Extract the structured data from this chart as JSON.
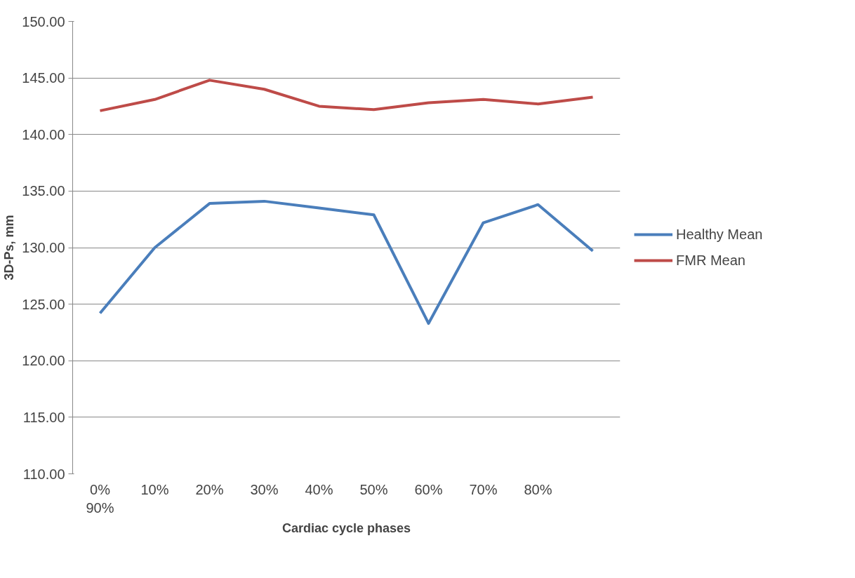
{
  "chart_data": {
    "type": "line",
    "xlabel": "Cardiac cycle phases",
    "ylabel": "3D-Ps, mm",
    "categories": [
      "0%\n90%",
      "10%",
      "20%",
      "30%",
      "40%",
      "50%",
      "60%",
      "70%",
      "80%",
      null
    ],
    "series": [
      {
        "name": "Healthy Mean",
        "color": "#4a7ebb",
        "values": [
          124.2,
          130.0,
          133.9,
          134.1,
          133.5,
          132.9,
          123.3,
          132.2,
          133.8,
          129.7
        ]
      },
      {
        "name": "FMR Mean",
        "color": "#be4b48",
        "values": [
          142.1,
          143.1,
          144.8,
          144.0,
          142.5,
          142.2,
          142.8,
          143.1,
          142.7,
          143.3
        ]
      }
    ],
    "ylim": [
      110,
      150
    ],
    "yticks": [
      {
        "value": 110,
        "label": "110.00"
      },
      {
        "value": 115,
        "label": "115.00"
      },
      {
        "value": 120,
        "label": "120.00"
      },
      {
        "value": 125,
        "label": "125.00"
      },
      {
        "value": 130,
        "label": "130.00"
      },
      {
        "value": 135,
        "label": "135.00"
      },
      {
        "value": 140,
        "label": "140.00"
      },
      {
        "value": 145,
        "label": "145.00"
      },
      {
        "value": 150,
        "label": "150.00"
      }
    ],
    "grid": "y",
    "legend": "right",
    "marker": "none",
    "line_style": "solid"
  }
}
